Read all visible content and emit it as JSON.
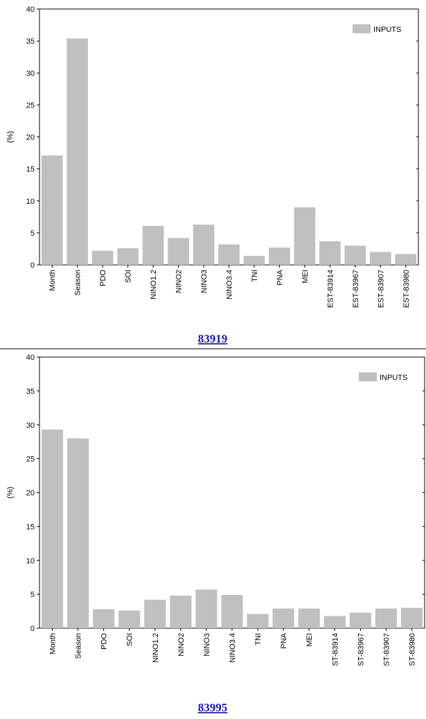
{
  "chart_data": [
    {
      "type": "bar",
      "title": "83919",
      "ylabel": "(%)",
      "categories": [
        "Month",
        "Season",
        "PDO",
        "SOI",
        "NINO1.2",
        "NINO2",
        "NINO3",
        "NINO3.4",
        "TNI",
        "PNA",
        "MEI",
        "EST-83914",
        "EST-83967",
        "EST-83907",
        "EST-83980"
      ],
      "series": [
        {
          "name": "INPUTS",
          "color": "#c0c0c0",
          "values": [
            17.1,
            35.4,
            2.2,
            2.6,
            6.1,
            4.2,
            6.3,
            3.2,
            1.4,
            2.7,
            9.0,
            3.7,
            3.0,
            2.0,
            1.7
          ]
        }
      ],
      "ylim": [
        0,
        40
      ],
      "yticks": [
        0,
        5,
        10,
        15,
        20,
        25,
        30,
        35,
        40
      ],
      "legend": "upper right"
    },
    {
      "type": "bar",
      "title": "83995",
      "ylabel": "(%)",
      "categories": [
        "Month",
        "Season",
        "PDO",
        "SOI",
        "NINO1.2",
        "NINO2",
        "NINO3",
        "NINO3.4",
        "TNI",
        "PNA",
        "MEI",
        "ST-83914",
        "ST-83967",
        "ST-83907",
        "ST-83980"
      ],
      "series": [
        {
          "name": "INPUTS",
          "color": "#c0c0c0",
          "values": [
            29.3,
            28.0,
            2.8,
            2.6,
            4.2,
            4.8,
            5.7,
            4.9,
            2.1,
            2.9,
            2.9,
            1.8,
            2.3,
            2.9,
            3.0
          ]
        }
      ],
      "ylim": [
        0,
        40
      ],
      "yticks": [
        0,
        5,
        10,
        15,
        20,
        25,
        30,
        35,
        40
      ],
      "legend": "upper right"
    }
  ]
}
